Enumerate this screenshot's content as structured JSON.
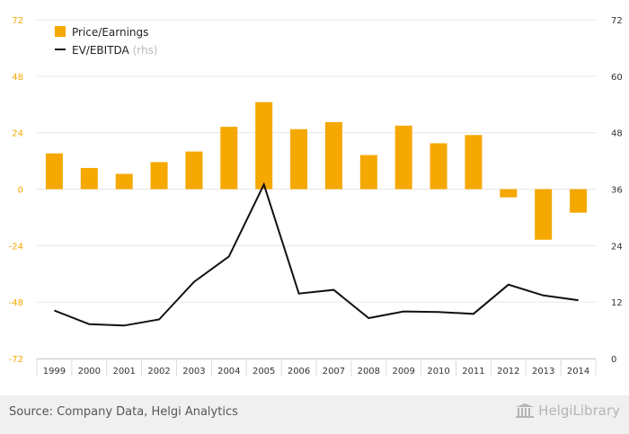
{
  "chart_data": {
    "type": "bar+line",
    "categories": [
      "1999",
      "2000",
      "2001",
      "2002",
      "2003",
      "2004",
      "2005",
      "2006",
      "2007",
      "2008",
      "2009",
      "2010",
      "2011",
      "2012",
      "2013",
      "2014"
    ],
    "series": [
      {
        "name": "Price/Earnings",
        "type": "bar",
        "axis": "left",
        "color": "#f5a800",
        "values": [
          15.2,
          9.0,
          6.5,
          11.5,
          16.0,
          26.5,
          37.0,
          25.5,
          28.5,
          14.5,
          27.0,
          19.5,
          23.0,
          -3.5,
          -21.5,
          -10.0
        ]
      },
      {
        "name": "EV/EBITDA",
        "name_suffix": "(rhs)",
        "type": "line",
        "axis": "right",
        "color": "#111111",
        "values": [
          10.2,
          7.3,
          7.0,
          8.3,
          16.3,
          21.7,
          37.0,
          13.8,
          14.6,
          8.6,
          10.0,
          9.9,
          9.5,
          15.7,
          13.4,
          12.4
        ]
      }
    ],
    "y_left": {
      "min": -72,
      "max": 72,
      "ticks": [
        "72",
        "48",
        "24",
        "0",
        "-24",
        "-48",
        "-72"
      ]
    },
    "y_right": {
      "min": 0,
      "max": 72,
      "ticks": [
        "72",
        "60",
        "48",
        "36",
        "24",
        "12",
        "0"
      ]
    },
    "grid": true,
    "legend_position": "top-left"
  },
  "footer": {
    "source": "Source: Company Data, Helgi Analytics",
    "brand": "HelgiLibrary",
    "brand_icon": "library-building-icon"
  }
}
